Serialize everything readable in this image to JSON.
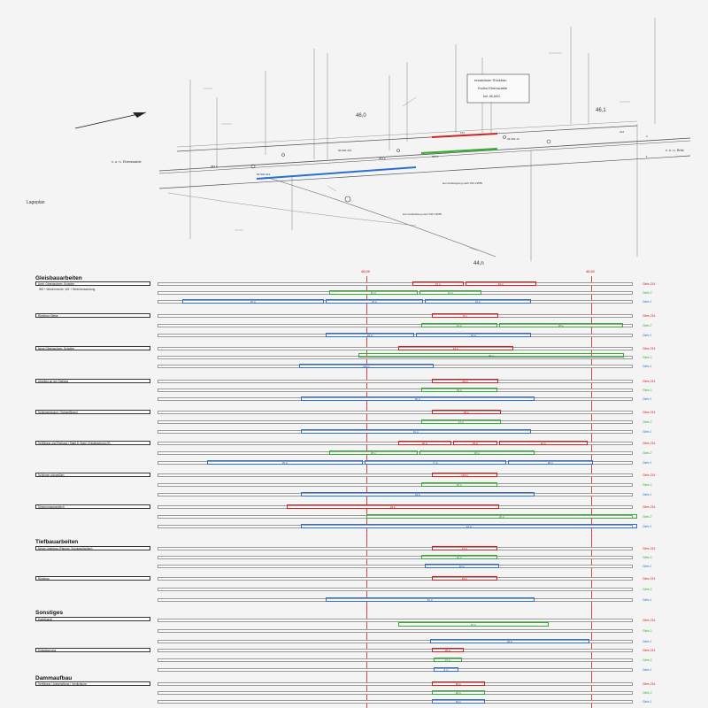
{
  "plan": {
    "title": "Lageplan",
    "left_direction": "v. u. n. Eberswalde",
    "right_direction": "v. u. n. Britz",
    "replacement_box": [
      "ersatzloser Rückbau",
      "Krzbw Eberswalde",
      "km 46,640"
    ],
    "km_labels": [
      "46,0",
      "46,1",
      "44,n"
    ],
    "track_numbers": [
      "60-500-312",
      "49-392-13",
      "60-500-312",
      "224",
      "1",
      "2"
    ],
    "mark_values": [
      "954,2",
      "954,2",
      "954,2",
      "101"
    ],
    "small_note_1": "kein Aufsteigweg nach DIN 13555",
    "small_note_2": "kein Aufstellweg nach DIN 13555",
    "red_markers": [
      "46,00",
      "46,62"
    ]
  },
  "sections": {
    "gleis": "Gleisbauarbeiten",
    "tief": "Tiefbauarbeiten",
    "sonst": "Sonstiges",
    "damm": "Dammaufbau"
  },
  "tasks": {
    "t1": "Umb. Oberbauform, Schotter",
    "t1_note": "W8 + Weichenende, W4 + Weichenwandung",
    "t2": "Rückbau Gleise",
    "t3": "Neue Oberbauform, Schotter",
    "t4": "Arbeiten an der Stellung",
    "t5": "Schienentausch / Schweißband",
    "t6": "Verfüllung und Reibung | Stahl 8. Stahl, Entwässerung (5)",
    "t7": "Schienen schweißen",
    "t8": "Spannungsausgleich",
    "t9": "Neuer Unterbau (Planum, Schutzschichten)",
    "t10": "Rückbau",
    "t11": "Kabelkanal",
    "t12": "Entwässerung",
    "t13": "Verfüllung / Aufschüttung / Verdichtung"
  },
  "gleise": {
    "g224": "Gleis 224",
    "g2": "Gleis 2",
    "g1": "Gleis 1"
  },
  "colors": {
    "red": "#d42020",
    "green": "#2fae2f",
    "blue": "#2a6fd6"
  },
  "bars": {
    "b1": "42 m",
    "b2": "46 m",
    "b3": "52 m",
    "b4": "10 m",
    "b5": "25 m",
    "b6": "26 m",
    "b7": "15 m",
    "b8": "8 m",
    "b9": "49 m",
    "b10": "38 m",
    "b11": "49 m",
    "b12": "33 m",
    "b13": "31 m",
    "b14": "38 m",
    "b15": "120 m",
    "b16": "53 m",
    "b17": "53 m",
    "b18": "50 m",
    "b19": "38 m",
    "b20": "27 m",
    "b21": "91 m",
    "b22": "40 m",
    "b23": "25 m",
    "b24": "22 m",
    "b25": "38 m",
    "b26": "48 m",
    "b27": "35 m",
    "b28": "77 m",
    "b29": "98 m",
    "b30": "170 m",
    "b31": "56 m",
    "b32": "33 m",
    "b33": "23 m",
    "b34": "20 m",
    "b35": "24 m",
    "b36": "17 m",
    "b37": "22 m"
  }
}
